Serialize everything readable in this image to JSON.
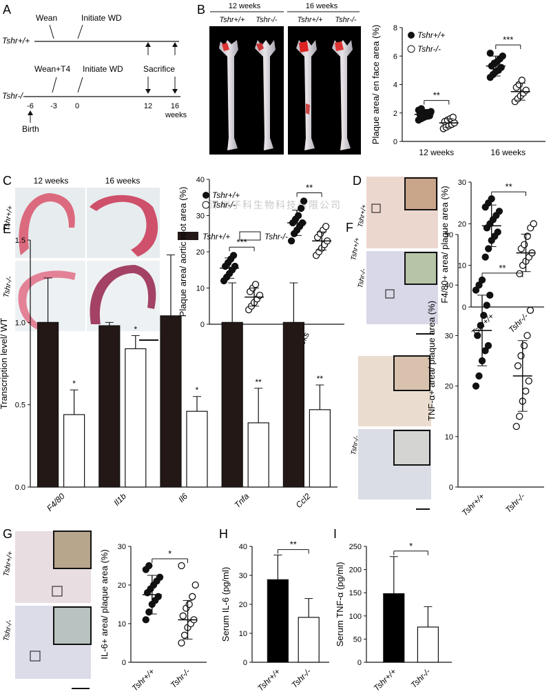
{
  "panels": {
    "A": {
      "letter": "A",
      "wt_label": "Tshr+/+",
      "ko_label": "Tshr-/-",
      "wt_events": [
        {
          "text": "Wean"
        },
        {
          "text": "Initiate WD"
        }
      ],
      "ko_events": [
        {
          "text": "Wean+T4"
        },
        {
          "text": "Initiate WD"
        }
      ],
      "sacrifice": "Sacrifice",
      "birth": "Birth",
      "ticks": [
        "-6",
        "-3",
        "0",
        "12",
        "16"
      ],
      "unit": "weeks"
    },
    "B": {
      "letter": "B",
      "photo_headers": [
        "12 weeks",
        "16 weeks"
      ],
      "photo_genotypes": [
        "Tshr+/+",
        "Tshr-/-",
        "Tshr+/+",
        "Tshr-/-"
      ],
      "legend": [
        "Tshr+/+",
        "Tshr-/-"
      ],
      "sig": [
        "**",
        "***"
      ]
    },
    "C": {
      "letter": "C",
      "photo_headers": [
        "12 weeks",
        "16 weeks"
      ],
      "row_labels": [
        "Tshr+/+",
        "Tshr-/-"
      ],
      "legend": [
        "Tshr+/+",
        "Tshr-/-"
      ],
      "sig": [
        "***",
        "**"
      ]
    },
    "D": {
      "letter": "D",
      "row_labels": [
        "Tshr+/+",
        "Tshr-/-"
      ],
      "sig": "**"
    },
    "E": {
      "letter": "E",
      "legend": [
        "Tshr+/+",
        "Tshr-/-"
      ],
      "sig": [
        "*",
        "*",
        "*",
        "**",
        "**"
      ]
    },
    "F": {
      "letter": "F",
      "row_labels": [
        "Tshr+/+",
        "Tshr-/-"
      ],
      "sig": "**"
    },
    "G": {
      "letter": "G",
      "row_labels": [
        "Tshr+/+",
        "Tshr-/-"
      ],
      "sig": "*"
    },
    "H": {
      "letter": "H",
      "sig": "**"
    },
    "I": {
      "letter": "I",
      "sig": "*"
    }
  },
  "watermark": "深圳子科生物科技有限公司",
  "chart_data": [
    {
      "id": "B",
      "type": "scatter",
      "ylabel": "Plaque area/ en face area (%)",
      "categories": [
        "12 weeks",
        "16 weeks"
      ],
      "ylim": [
        0,
        8
      ],
      "yticks": [
        "0",
        "2",
        "4",
        "6",
        "8"
      ],
      "series": [
        {
          "name": "Tshr+/+",
          "groups": [
            {
              "mean": 1.9,
              "sd": 0.35,
              "points": [
                1.5,
                1.6,
                1.7,
                1.8,
                1.8,
                1.9,
                1.9,
                2.0,
                2.0,
                2.1,
                2.2,
                2.3
              ]
            },
            {
              "mean": 5.3,
              "sd": 0.7,
              "points": [
                4.5,
                4.7,
                4.9,
                5.0,
                5.2,
                5.3,
                5.5,
                5.6,
                5.8,
                6.0,
                6.2
              ]
            }
          ]
        },
        {
          "name": "Tshr-/-",
          "groups": [
            {
              "mean": 1.3,
              "sd": 0.3,
              "points": [
                0.9,
                1.0,
                1.1,
                1.2,
                1.3,
                1.4,
                1.5,
                1.6,
                1.7
              ]
            },
            {
              "mean": 3.5,
              "sd": 0.6,
              "points": [
                2.8,
                3.0,
                3.2,
                3.4,
                3.6,
                3.8,
                4.0,
                4.3
              ]
            }
          ]
        }
      ]
    },
    {
      "id": "C",
      "type": "scatter",
      "ylabel": "Plaque area/ aortic root area (%)",
      "categories": [
        "12 weeks",
        "16 weeks"
      ],
      "ylim": [
        0,
        40
      ],
      "yticks": [
        "0",
        "10",
        "20",
        "30",
        "40"
      ],
      "series": [
        {
          "name": "Tshr+/+",
          "groups": [
            {
              "mean": 15.5,
              "sd": 2.8,
              "points": [
                12,
                13,
                14,
                15,
                16,
                16,
                17,
                18,
                19
              ]
            },
            {
              "mean": 28,
              "sd": 3.5,
              "points": [
                23,
                25,
                26,
                27,
                28,
                28,
                29,
                30,
                32,
                34
              ]
            }
          ]
        },
        {
          "name": "Tshr-/-",
          "groups": [
            {
              "mean": 7.5,
              "sd": 2.5,
              "points": [
                4,
                5,
                6,
                7,
                8,
                9,
                10,
                11
              ]
            },
            {
              "mean": 23,
              "sd": 2.5,
              "points": [
                19,
                20,
                21,
                22,
                23,
                24,
                25,
                26,
                27
              ]
            }
          ]
        }
      ]
    },
    {
      "id": "D",
      "type": "scatter",
      "ylabel": "F4/80+ area/ plaque area (%)",
      "categories": [
        "Tshr+/+",
        "Tshr-/-"
      ],
      "ylim": [
        0,
        30
      ],
      "yticks": [
        "0",
        "10",
        "20",
        "30"
      ],
      "groups": [
        {
          "mean": 19.5,
          "sd": 5,
          "points": [
            12,
            14,
            16,
            17,
            18,
            19,
            20,
            21,
            22,
            23,
            24,
            25,
            26
          ],
          "filled": true
        },
        {
          "mean": 13,
          "sd": 4.5,
          "points": [
            8,
            10,
            11,
            12,
            13,
            14,
            15,
            17,
            19,
            20
          ],
          "filled": false
        }
      ]
    },
    {
      "id": "E",
      "type": "bar",
      "ylabel": "Transcription level/ WT",
      "categories": [
        "F4/80",
        "Il1b",
        "Il6",
        "Tnfa",
        "Ccl2"
      ],
      "ylim": [
        0,
        1.5
      ],
      "yticks": [
        "0.0",
        "0.5",
        "1.0",
        "1.5"
      ],
      "series": [
        {
          "name": "Tshr+/+",
          "values": [
            1.0,
            0.98,
            1.04,
            1.0,
            1.0
          ],
          "errors": [
            0.27,
            0.02,
            0.37,
            0.24,
            0.24
          ]
        },
        {
          "name": "Tshr-/-",
          "values": [
            0.44,
            0.84,
            0.46,
            0.39,
            0.47
          ],
          "errors": [
            0.15,
            0.08,
            0.09,
            0.21,
            0.15
          ]
        }
      ]
    },
    {
      "id": "F",
      "type": "scatter",
      "ylabel": "TNF-α+ area/ plaque area (%)",
      "categories": [
        "Tshr+/+",
        "Tshr-/-"
      ],
      "ylim": [
        0,
        50
      ],
      "yticks": [
        "0",
        "10",
        "20",
        "30",
        "40",
        "50"
      ],
      "groups": [
        {
          "mean": 31,
          "sd": 7,
          "points": [
            20,
            22,
            25,
            27,
            28,
            30,
            32,
            34,
            36,
            38,
            39,
            40,
            41
          ],
          "filled": true
        },
        {
          "mean": 22,
          "sd": 7,
          "points": [
            12,
            14,
            17,
            19,
            21,
            24,
            26,
            28,
            30,
            35
          ],
          "filled": false
        }
      ]
    },
    {
      "id": "G",
      "type": "scatter",
      "ylabel": "IL-6+ area/ plaque area (%)",
      "categories": [
        "Tshr+/+",
        "Tshr-/-"
      ],
      "ylim": [
        0,
        30
      ],
      "yticks": [
        "0",
        "10",
        "20",
        "30"
      ],
      "groups": [
        {
          "mean": 17.5,
          "sd": 5,
          "points": [
            11,
            13,
            15,
            16,
            17,
            18,
            19,
            20,
            21,
            22,
            24,
            25
          ],
          "filled": true
        },
        {
          "mean": 11,
          "sd": 5,
          "points": [
            5,
            7,
            9,
            10,
            11,
            12,
            14,
            15,
            17,
            20,
            25
          ],
          "filled": false
        }
      ]
    },
    {
      "id": "H",
      "type": "bar",
      "ylabel": "Serum IL-6 (pg/ml)",
      "categories": [
        "Tshr+/+",
        "Tshr-/-"
      ],
      "ylim": [
        0,
        40
      ],
      "yticks": [
        "0",
        "10",
        "20",
        "30",
        "40"
      ],
      "values": [
        28.5,
        15.5
      ],
      "errors": [
        8.5,
        6.5
      ]
    },
    {
      "id": "I",
      "type": "bar",
      "ylabel": "Serum TNF-α (pg/ml)",
      "categories": [
        "Tshr+/+",
        "Tshr-/-"
      ],
      "ylim": [
        0,
        250
      ],
      "yticks": [
        "0",
        "50",
        "100",
        "150",
        "200",
        "250"
      ],
      "values": [
        148,
        76
      ],
      "errors": [
        80,
        44
      ]
    }
  ]
}
